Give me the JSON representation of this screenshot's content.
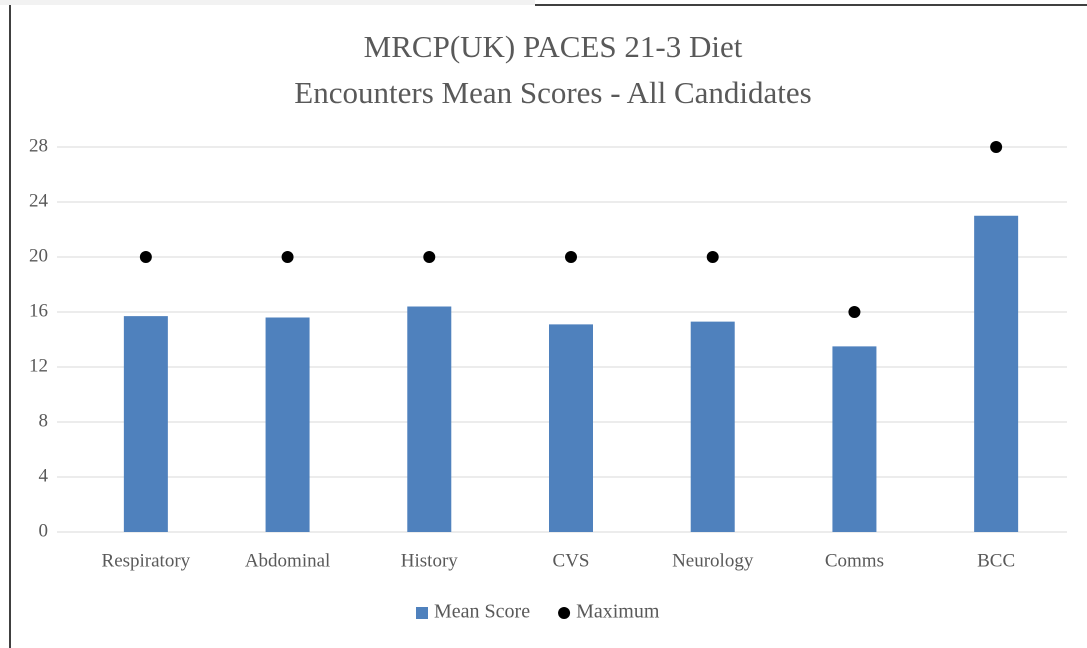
{
  "chart_data": {
    "type": "bar",
    "title": [
      "MRCP(UK) PACES 21-3 Diet",
      "Encounters Mean Scores - All Candidates"
    ],
    "categories": [
      "Respiratory",
      "Abdominal",
      "History",
      "CVS",
      "Neurology",
      "Comms",
      "BCC"
    ],
    "series": [
      {
        "name": "Mean Score",
        "color": "#4f81bd",
        "marker": "bar",
        "values": [
          15.7,
          15.6,
          16.4,
          15.1,
          15.3,
          13.5,
          23.0
        ]
      },
      {
        "name": "Maximum",
        "color": "#000000",
        "marker": "dot",
        "values": [
          20,
          20,
          20,
          20,
          20,
          16,
          28
        ]
      }
    ],
    "ylim": [
      0,
      28
    ],
    "yticks": [
      0,
      4,
      8,
      12,
      16,
      20,
      24,
      28
    ],
    "grid": true,
    "legend": "bottom"
  }
}
